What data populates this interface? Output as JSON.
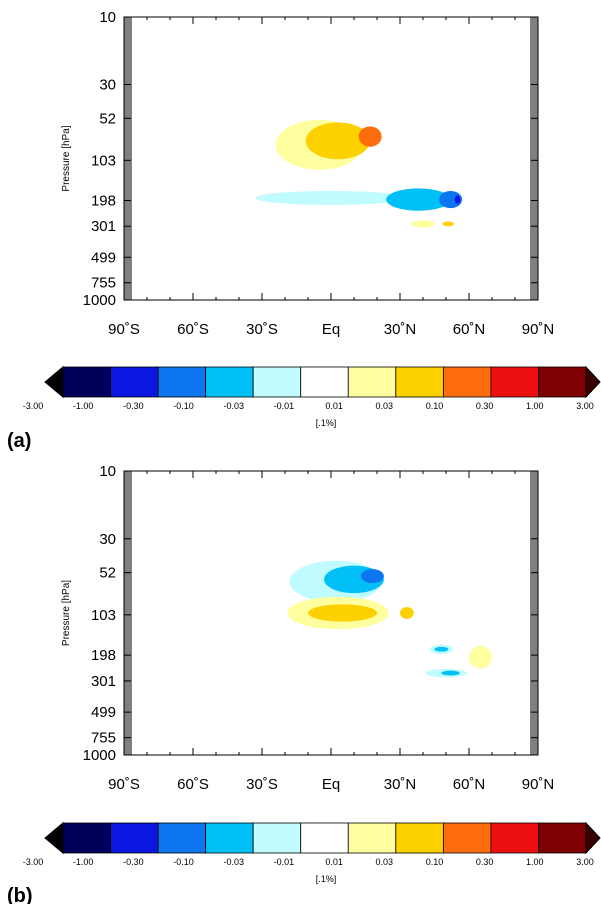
{
  "chart_data": [
    {
      "type": "contour",
      "panel_label": "(a)",
      "ylabel": "Pressure [hPa]",
      "xlabel": "",
      "x_tick_labels": [
        "90˚S",
        "60˚S",
        "30˚S",
        "Eq",
        "30˚N",
        "60˚N",
        "90˚N"
      ],
      "x_ticks": [
        -90,
        -60,
        -30,
        0,
        30,
        60,
        90
      ],
      "y_tick_labels": [
        "10",
        "30",
        "52",
        "103",
        "198",
        "301",
        "499",
        "755",
        "1000"
      ],
      "y_ticks": [
        10,
        30,
        52,
        103,
        198,
        301,
        499,
        755,
        1000
      ],
      "y_scale": "log",
      "xlim": [
        -90,
        90
      ],
      "ylim": [
        1000,
        10
      ],
      "masked_region_color": "#808080",
      "contour_features": [
        {
          "lat": -5,
          "p": 80,
          "level": "0.01 to 0.03",
          "lat_w": 19,
          "p_w": 1.5
        },
        {
          "lat": 3,
          "p": 75,
          "level": "0.03 to 0.10",
          "lat_w": 14,
          "p_w": 1.35
        },
        {
          "lat": 17,
          "p": 70,
          "level": "0.10 to 0.30",
          "lat_w": 5,
          "p_w": 1.18
        },
        {
          "lat": 0,
          "p": 190,
          "level": "-0.01 to -0.03",
          "lat_w": 33,
          "p_w": 1.12
        },
        {
          "lat": 38,
          "p": 195,
          "level": "-0.03 to -0.10",
          "lat_w": 14,
          "p_w": 1.2
        },
        {
          "lat": 52,
          "p": 195,
          "level": "-0.10 to -0.30",
          "lat_w": 5,
          "p_w": 1.15
        },
        {
          "lat": 55,
          "p": 195,
          "level": "-0.30 to -1.00",
          "lat_w": 1.2,
          "p_w": 1.07
        },
        {
          "lat": 40,
          "p": 290,
          "level": "0.01 to 0.03",
          "lat_w": 5,
          "p_w": 1.06
        },
        {
          "lat": 51,
          "p": 290,
          "level": "0.03 to 0.10",
          "lat_w": 2.5,
          "p_w": 1.04
        }
      ]
    },
    {
      "type": "contour",
      "panel_label": "(b)",
      "ylabel": "Pressure [hPa]",
      "xlabel": "",
      "x_tick_labels": [
        "90˚S",
        "60˚S",
        "30˚S",
        "Eq",
        "30˚N",
        "60˚N",
        "90˚N"
      ],
      "x_ticks": [
        -90,
        -60,
        -30,
        0,
        30,
        60,
        90
      ],
      "y_tick_labels": [
        "10",
        "30",
        "52",
        "103",
        "198",
        "301",
        "499",
        "755",
        "1000"
      ],
      "y_ticks": [
        10,
        30,
        52,
        103,
        198,
        301,
        499,
        755,
        1000
      ],
      "y_scale": "log",
      "xlim": [
        -90,
        90
      ],
      "ylim": [
        1000,
        10
      ],
      "masked_region_color": "#808080",
      "contour_features": [
        {
          "lat": 2,
          "p": 60,
          "level": "-0.01 to -0.03",
          "lat_w": 20,
          "p_w": 1.4
        },
        {
          "lat": 10,
          "p": 58,
          "level": "-0.03 to -0.10",
          "lat_w": 13,
          "p_w": 1.25
        },
        {
          "lat": 18,
          "p": 55,
          "level": "-0.10 to -0.30",
          "lat_w": 5,
          "p_w": 1.12
        },
        {
          "lat": 3,
          "p": 100,
          "level": "0.01 to 0.03",
          "lat_w": 22,
          "p_w": 1.3
        },
        {
          "lat": 5,
          "p": 100,
          "level": "0.03 to 0.10",
          "lat_w": 15,
          "p_w": 1.15
        },
        {
          "lat": 33,
          "p": 100,
          "level": "0.03 to 0.10",
          "lat_w": 3,
          "p_w": 1.1
        },
        {
          "lat": 48,
          "p": 180,
          "level": "-0.01 to -0.03",
          "lat_w": 5,
          "p_w": 1.08
        },
        {
          "lat": 48,
          "p": 180,
          "level": "-0.03 to -0.10",
          "lat_w": 3,
          "p_w": 1.04
        },
        {
          "lat": 65,
          "p": 205,
          "level": "0.01 to 0.03",
          "lat_w": 5,
          "p_w": 1.2
        },
        {
          "lat": 50,
          "p": 265,
          "level": "-0.01 to -0.03",
          "lat_w": 9,
          "p_w": 1.07
        },
        {
          "lat": 52,
          "p": 265,
          "level": "-0.03 to -0.10",
          "lat_w": 4,
          "p_w": 1.04
        }
      ]
    }
  ],
  "colorbar": {
    "labels": [
      "-3.00",
      "-1.00",
      "-0.30",
      "-0.10",
      "-0.03",
      "-0.01",
      "0.01",
      "0.03",
      "0.10",
      "0.30",
      "1.00",
      "3.00"
    ],
    "colors": [
      "#00005c",
      "#0a17e0",
      "#0e75f0",
      "#00c0f5",
      "#bffbff",
      "#ffffff",
      "#ffffa0",
      "#fdd000",
      "#fd6d0d",
      "#ee1010",
      "#7e0000"
    ],
    "under_color": "#000000",
    "over_color": "#3a0000",
    "units_label": "[.1%]"
  },
  "level_colors": {
    "-0.30 to -1.00": "#0a17e0",
    "-0.10 to -0.30": "#0e75f0",
    "-0.03 to -0.10": "#00c0f5",
    "-0.01 to -0.03": "#bffbff",
    "0.01 to 0.03": "#ffffa0",
    "0.03 to 0.10": "#fdd000",
    "0.10 to 0.30": "#fd6d0d"
  }
}
